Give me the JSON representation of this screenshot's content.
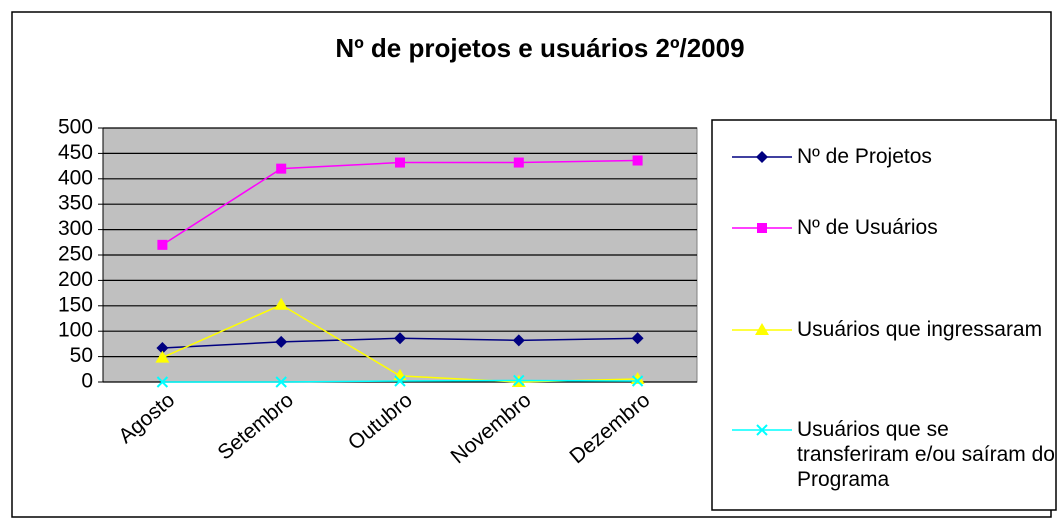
{
  "chart_data": {
    "type": "line",
    "title": "Nº de projetos e usuários 2º/2009",
    "categories": [
      "Agosto",
      "Setembro",
      "Outubro",
      "Novembro",
      "Dezembro"
    ],
    "series": [
      {
        "name": "Nº de Projetos",
        "color": "#000080",
        "marker": "diamond",
        "values": [
          67,
          79,
          86,
          82,
          86
        ]
      },
      {
        "name": "Nº de Usuários",
        "color": "#ff00ff",
        "marker": "square",
        "values": [
          270,
          420,
          432,
          432,
          436
        ]
      },
      {
        "name": "Usuários que ingressaram",
        "color": "#ffff00",
        "marker": "triangle",
        "values": [
          48,
          152,
          12,
          0,
          6
        ]
      },
      {
        "name": "Usuários que se transferiram e/ou saíram do Programa",
        "color": "#00ffff",
        "marker": "x",
        "values": [
          0,
          0,
          2,
          3,
          2
        ]
      }
    ],
    "ylim": [
      0,
      500
    ],
    "yticks": [
      0,
      50,
      100,
      150,
      200,
      250,
      300,
      350,
      400,
      450,
      500
    ],
    "grid": true,
    "legend": "right"
  }
}
